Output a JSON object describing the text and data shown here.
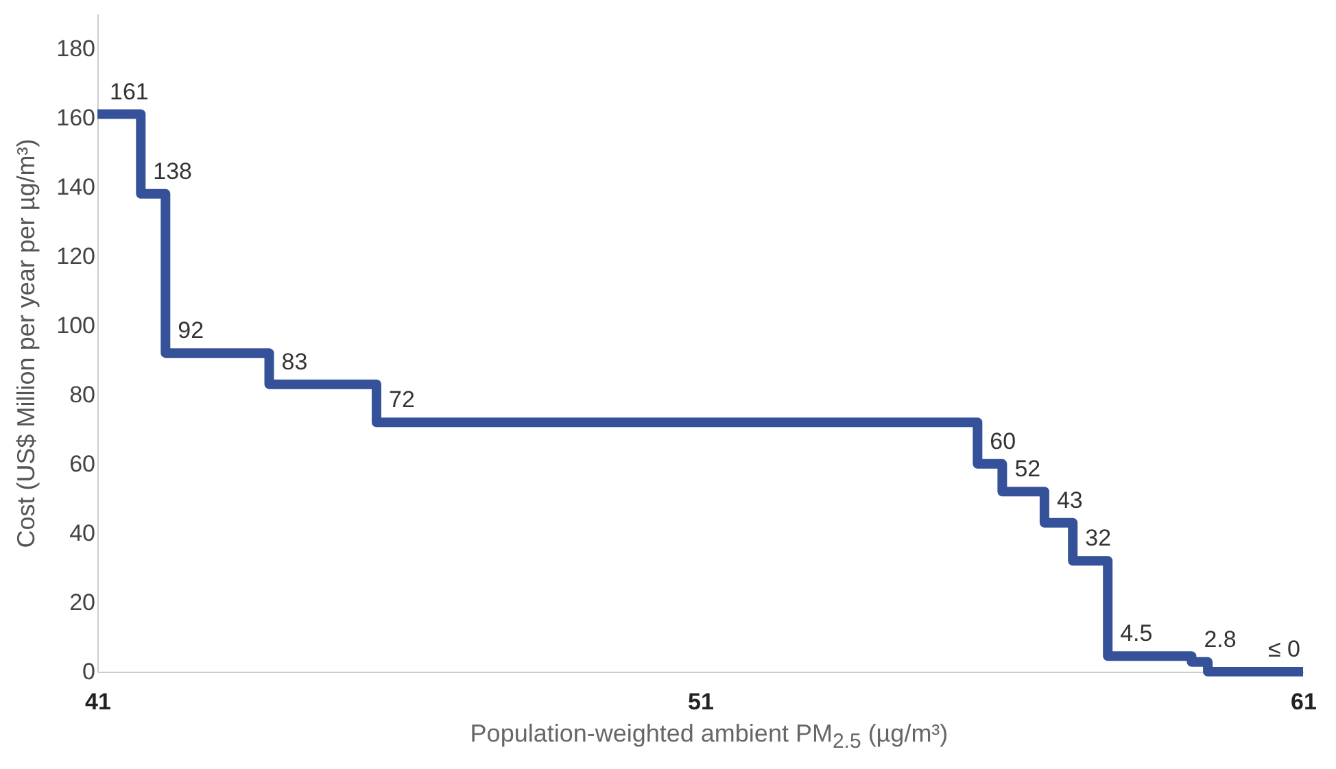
{
  "chart_data": {
    "type": "step",
    "xlabel": "Population-weighted ambient PM$_{2.5}$ (µg/m³)",
    "ylabel": "Cost (US$ Million per year per µg/m³)",
    "x": [
      41,
      41.72,
      42.13,
      43.85,
      45.63,
      55.6,
      56.01,
      56.71,
      57.18,
      57.76,
      59.15,
      59.42,
      61
    ],
    "series": [
      {
        "color": "#34519a",
        "values": [
          161,
          138,
          92,
          83,
          72,
          60,
          52,
          43,
          32,
          4.5,
          2.8,
          0,
          0
        ],
        "value_labels": [
          "161",
          "138",
          "92",
          "83",
          "72",
          "60",
          "52",
          "43",
          "32",
          "4.5",
          "2.8",
          null,
          "≤ 0"
        ]
      }
    ],
    "xlim": [
      41,
      61
    ],
    "xticks": [
      41,
      51,
      61
    ],
    "ylim": [
      0,
      190
    ],
    "yticks": [
      0,
      20,
      40,
      60,
      80,
      100,
      120,
      140,
      160,
      180
    ],
    "grid": false,
    "marker": "none",
    "line_style": "solid"
  }
}
